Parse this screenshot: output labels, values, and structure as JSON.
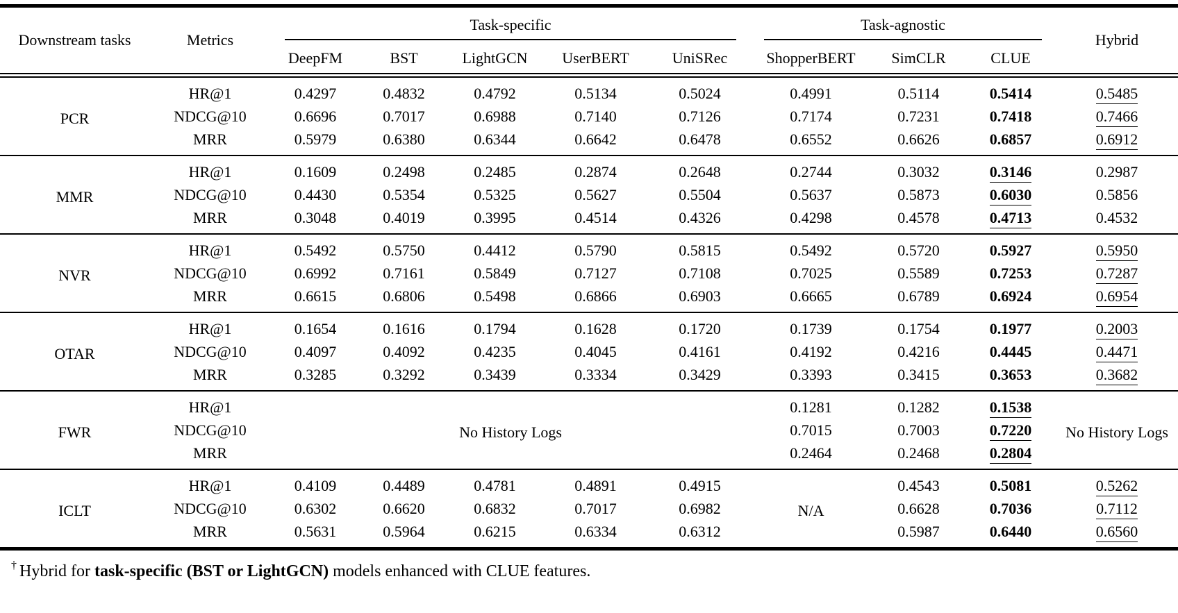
{
  "page": {
    "background": "#ffffff",
    "text_color": "#000000",
    "rule_color": "#000000"
  },
  "table": {
    "header": {
      "downstream_tasks": "Downstream tasks",
      "metrics": "Metrics",
      "groups": [
        {
          "label": "Task-specific",
          "models": [
            "DeepFM",
            "BST",
            "LightGCN",
            "UserBERT",
            "UniSRec"
          ]
        },
        {
          "label": "Task-agnostic",
          "models": [
            "ShopperBERT",
            "SimCLR",
            "CLUE"
          ]
        }
      ],
      "hybrid": "Hybrid"
    },
    "groups": [
      {
        "task": "PCR",
        "rows": [
          {
            "metric": "HR@1",
            "specific": [
              {
                "v": "0.4297"
              },
              {
                "v": "0.4832"
              },
              {
                "v": "0.4792"
              },
              {
                "v": "0.5134"
              },
              {
                "v": "0.5024"
              }
            ],
            "agnostic": [
              {
                "v": "0.4991"
              },
              {
                "v": "0.5114"
              },
              {
                "v": "0.5414",
                "b": true
              }
            ],
            "hybrid": {
              "v": "0.5485",
              "u": true
            }
          },
          {
            "metric": "NDCG@10",
            "specific": [
              {
                "v": "0.6696"
              },
              {
                "v": "0.7017"
              },
              {
                "v": "0.6988"
              },
              {
                "v": "0.7140"
              },
              {
                "v": "0.7126"
              }
            ],
            "agnostic": [
              {
                "v": "0.7174"
              },
              {
                "v": "0.7231"
              },
              {
                "v": "0.7418",
                "b": true
              }
            ],
            "hybrid": {
              "v": "0.7466",
              "u": true
            }
          },
          {
            "metric": "MRR",
            "specific": [
              {
                "v": "0.5979"
              },
              {
                "v": "0.6380"
              },
              {
                "v": "0.6344"
              },
              {
                "v": "0.6642"
              },
              {
                "v": "0.6478"
              }
            ],
            "agnostic": [
              {
                "v": "0.6552"
              },
              {
                "v": "0.6626"
              },
              {
                "v": "0.6857",
                "b": true
              }
            ],
            "hybrid": {
              "v": "0.6912",
              "u": true
            }
          }
        ]
      },
      {
        "task": "MMR",
        "rows": [
          {
            "metric": "HR@1",
            "specific": [
              {
                "v": "0.1609"
              },
              {
                "v": "0.2498"
              },
              {
                "v": "0.2485"
              },
              {
                "v": "0.2874"
              },
              {
                "v": "0.2648"
              }
            ],
            "agnostic": [
              {
                "v": "0.2744"
              },
              {
                "v": "0.3032"
              },
              {
                "v": "0.3146",
                "b": true,
                "u": true
              }
            ],
            "hybrid": {
              "v": "0.2987"
            }
          },
          {
            "metric": "NDCG@10",
            "specific": [
              {
                "v": "0.4430"
              },
              {
                "v": "0.5354"
              },
              {
                "v": "0.5325"
              },
              {
                "v": "0.5627"
              },
              {
                "v": "0.5504"
              }
            ],
            "agnostic": [
              {
                "v": "0.5637"
              },
              {
                "v": "0.5873"
              },
              {
                "v": "0.6030",
                "b": true,
                "u": true
              }
            ],
            "hybrid": {
              "v": "0.5856"
            }
          },
          {
            "metric": "MRR",
            "specific": [
              {
                "v": "0.3048"
              },
              {
                "v": "0.4019"
              },
              {
                "v": "0.3995"
              },
              {
                "v": "0.4514"
              },
              {
                "v": "0.4326"
              }
            ],
            "agnostic": [
              {
                "v": "0.4298"
              },
              {
                "v": "0.4578"
              },
              {
                "v": "0.4713",
                "b": true,
                "u": true
              }
            ],
            "hybrid": {
              "v": "0.4532"
            }
          }
        ]
      },
      {
        "task": "NVR",
        "rows": [
          {
            "metric": "HR@1",
            "specific": [
              {
                "v": "0.5492"
              },
              {
                "v": "0.5750"
              },
              {
                "v": "0.4412"
              },
              {
                "v": "0.5790"
              },
              {
                "v": "0.5815"
              }
            ],
            "agnostic": [
              {
                "v": "0.5492"
              },
              {
                "v": "0.5720"
              },
              {
                "v": "0.5927",
                "b": true
              }
            ],
            "hybrid": {
              "v": "0.5950",
              "u": true
            }
          },
          {
            "metric": "NDCG@10",
            "specific": [
              {
                "v": "0.6992"
              },
              {
                "v": "0.7161"
              },
              {
                "v": "0.5849"
              },
              {
                "v": "0.7127"
              },
              {
                "v": "0.7108"
              }
            ],
            "agnostic": [
              {
                "v": "0.7025"
              },
              {
                "v": "0.5589"
              },
              {
                "v": "0.7253",
                "b": true
              }
            ],
            "hybrid": {
              "v": "0.7287",
              "u": true
            }
          },
          {
            "metric": "MRR",
            "specific": [
              {
                "v": "0.6615"
              },
              {
                "v": "0.6806"
              },
              {
                "v": "0.5498"
              },
              {
                "v": "0.6866"
              },
              {
                "v": "0.6903"
              }
            ],
            "agnostic": [
              {
                "v": "0.6665"
              },
              {
                "v": "0.6789"
              },
              {
                "v": "0.6924",
                "b": true
              }
            ],
            "hybrid": {
              "v": "0.6954",
              "u": true
            }
          }
        ]
      },
      {
        "task": "OTAR",
        "rows": [
          {
            "metric": "HR@1",
            "specific": [
              {
                "v": "0.1654"
              },
              {
                "v": "0.1616"
              },
              {
                "v": "0.1794"
              },
              {
                "v": "0.1628"
              },
              {
                "v": "0.1720"
              }
            ],
            "agnostic": [
              {
                "v": "0.1739"
              },
              {
                "v": "0.1754"
              },
              {
                "v": "0.1977",
                "b": true
              }
            ],
            "hybrid": {
              "v": "0.2003",
              "u": true
            }
          },
          {
            "metric": "NDCG@10",
            "specific": [
              {
                "v": "0.4097"
              },
              {
                "v": "0.4092"
              },
              {
                "v": "0.4235"
              },
              {
                "v": "0.4045"
              },
              {
                "v": "0.4161"
              }
            ],
            "agnostic": [
              {
                "v": "0.4192"
              },
              {
                "v": "0.4216"
              },
              {
                "v": "0.4445",
                "b": true
              }
            ],
            "hybrid": {
              "v": "0.4471",
              "u": true
            }
          },
          {
            "metric": "MRR",
            "specific": [
              {
                "v": "0.3285"
              },
              {
                "v": "0.3292"
              },
              {
                "v": "0.3439"
              },
              {
                "v": "0.3334"
              },
              {
                "v": "0.3429"
              }
            ],
            "agnostic": [
              {
                "v": "0.3393"
              },
              {
                "v": "0.3415"
              },
              {
                "v": "0.3653",
                "b": true
              }
            ],
            "hybrid": {
              "v": "0.3682",
              "u": true
            }
          }
        ]
      },
      {
        "task": "FWR",
        "specific_span": "No History Logs",
        "hybrid_span": "No History Logs",
        "rows": [
          {
            "metric": "HR@1",
            "agnostic": [
              {
                "v": "0.1281"
              },
              {
                "v": "0.1282"
              },
              {
                "v": "0.1538",
                "b": true,
                "u": true
              }
            ]
          },
          {
            "metric": "NDCG@10",
            "agnostic": [
              {
                "v": "0.7015"
              },
              {
                "v": "0.7003"
              },
              {
                "v": "0.7220",
                "b": true,
                "u": true
              }
            ]
          },
          {
            "metric": "MRR",
            "agnostic": [
              {
                "v": "0.2464"
              },
              {
                "v": "0.2468"
              },
              {
                "v": "0.2804",
                "b": true,
                "u": true
              }
            ]
          }
        ]
      },
      {
        "task": "ICLT",
        "na_span": "N/A",
        "rows": [
          {
            "metric": "HR@1",
            "specific": [
              {
                "v": "0.4109"
              },
              {
                "v": "0.4489"
              },
              {
                "v": "0.4781"
              },
              {
                "v": "0.4891"
              },
              {
                "v": "0.4915"
              }
            ],
            "agnostic": [
              {
                "v": "0.4543"
              },
              {
                "v": "0.5081",
                "b": true
              }
            ],
            "hybrid": {
              "v": "0.5262",
              "u": true
            }
          },
          {
            "metric": "NDCG@10",
            "specific": [
              {
                "v": "0.6302"
              },
              {
                "v": "0.6620"
              },
              {
                "v": "0.6832"
              },
              {
                "v": "0.7017"
              },
              {
                "v": "0.6982"
              }
            ],
            "agnostic": [
              {
                "v": "0.6628"
              },
              {
                "v": "0.7036",
                "b": true
              }
            ],
            "hybrid": {
              "v": "0.7112",
              "u": true
            }
          },
          {
            "metric": "MRR",
            "specific": [
              {
                "v": "0.5631"
              },
              {
                "v": "0.5964"
              },
              {
                "v": "0.6215"
              },
              {
                "v": "0.6334"
              },
              {
                "v": "0.6312"
              }
            ],
            "agnostic": [
              {
                "v": "0.5987"
              },
              {
                "v": "0.6440",
                "b": true
              }
            ],
            "hybrid": {
              "v": "0.6560",
              "u": true
            }
          }
        ]
      }
    ],
    "footnote": {
      "dagger": "†",
      "pre": "Hybrid for ",
      "bold": "task-specific (BST or LightGCN)",
      "post": " models enhanced with CLUE features."
    }
  }
}
